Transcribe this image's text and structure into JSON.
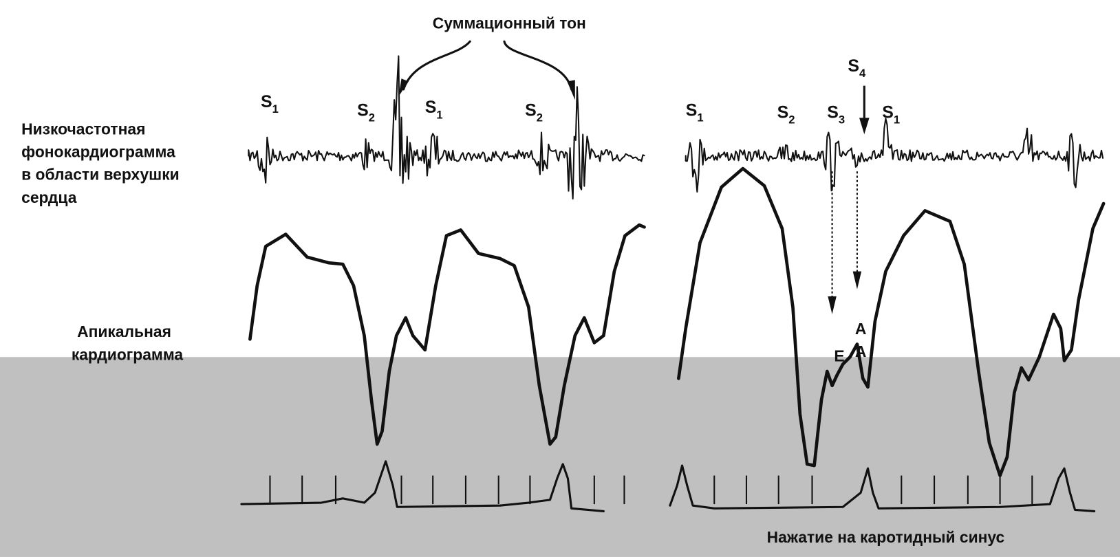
{
  "title": "Суммационный тон",
  "phono_label": [
    "Низкочастотная",
    "фонокардиограмма",
    "в области верхушки",
    "сердца"
  ],
  "apex_label": [
    "Апикальная",
    "кардиограмма"
  ],
  "sound_labels": [
    {
      "main": "S",
      "sub": "1"
    },
    {
      "main": "S",
      "sub": "2"
    },
    {
      "main": "S",
      "sub": "1"
    },
    {
      "main": "S",
      "sub": "2"
    },
    {
      "main": "S",
      "sub": "1"
    },
    {
      "main": "S",
      "sub": "2"
    },
    {
      "main": "S",
      "sub": "3"
    },
    {
      "main": "S",
      "sub": "4"
    },
    {
      "main": "S",
      "sub": "1"
    }
  ],
  "wave_labels": [
    "A",
    "E",
    "A"
  ],
  "caption": "Нажатие на каротидный синус"
}
